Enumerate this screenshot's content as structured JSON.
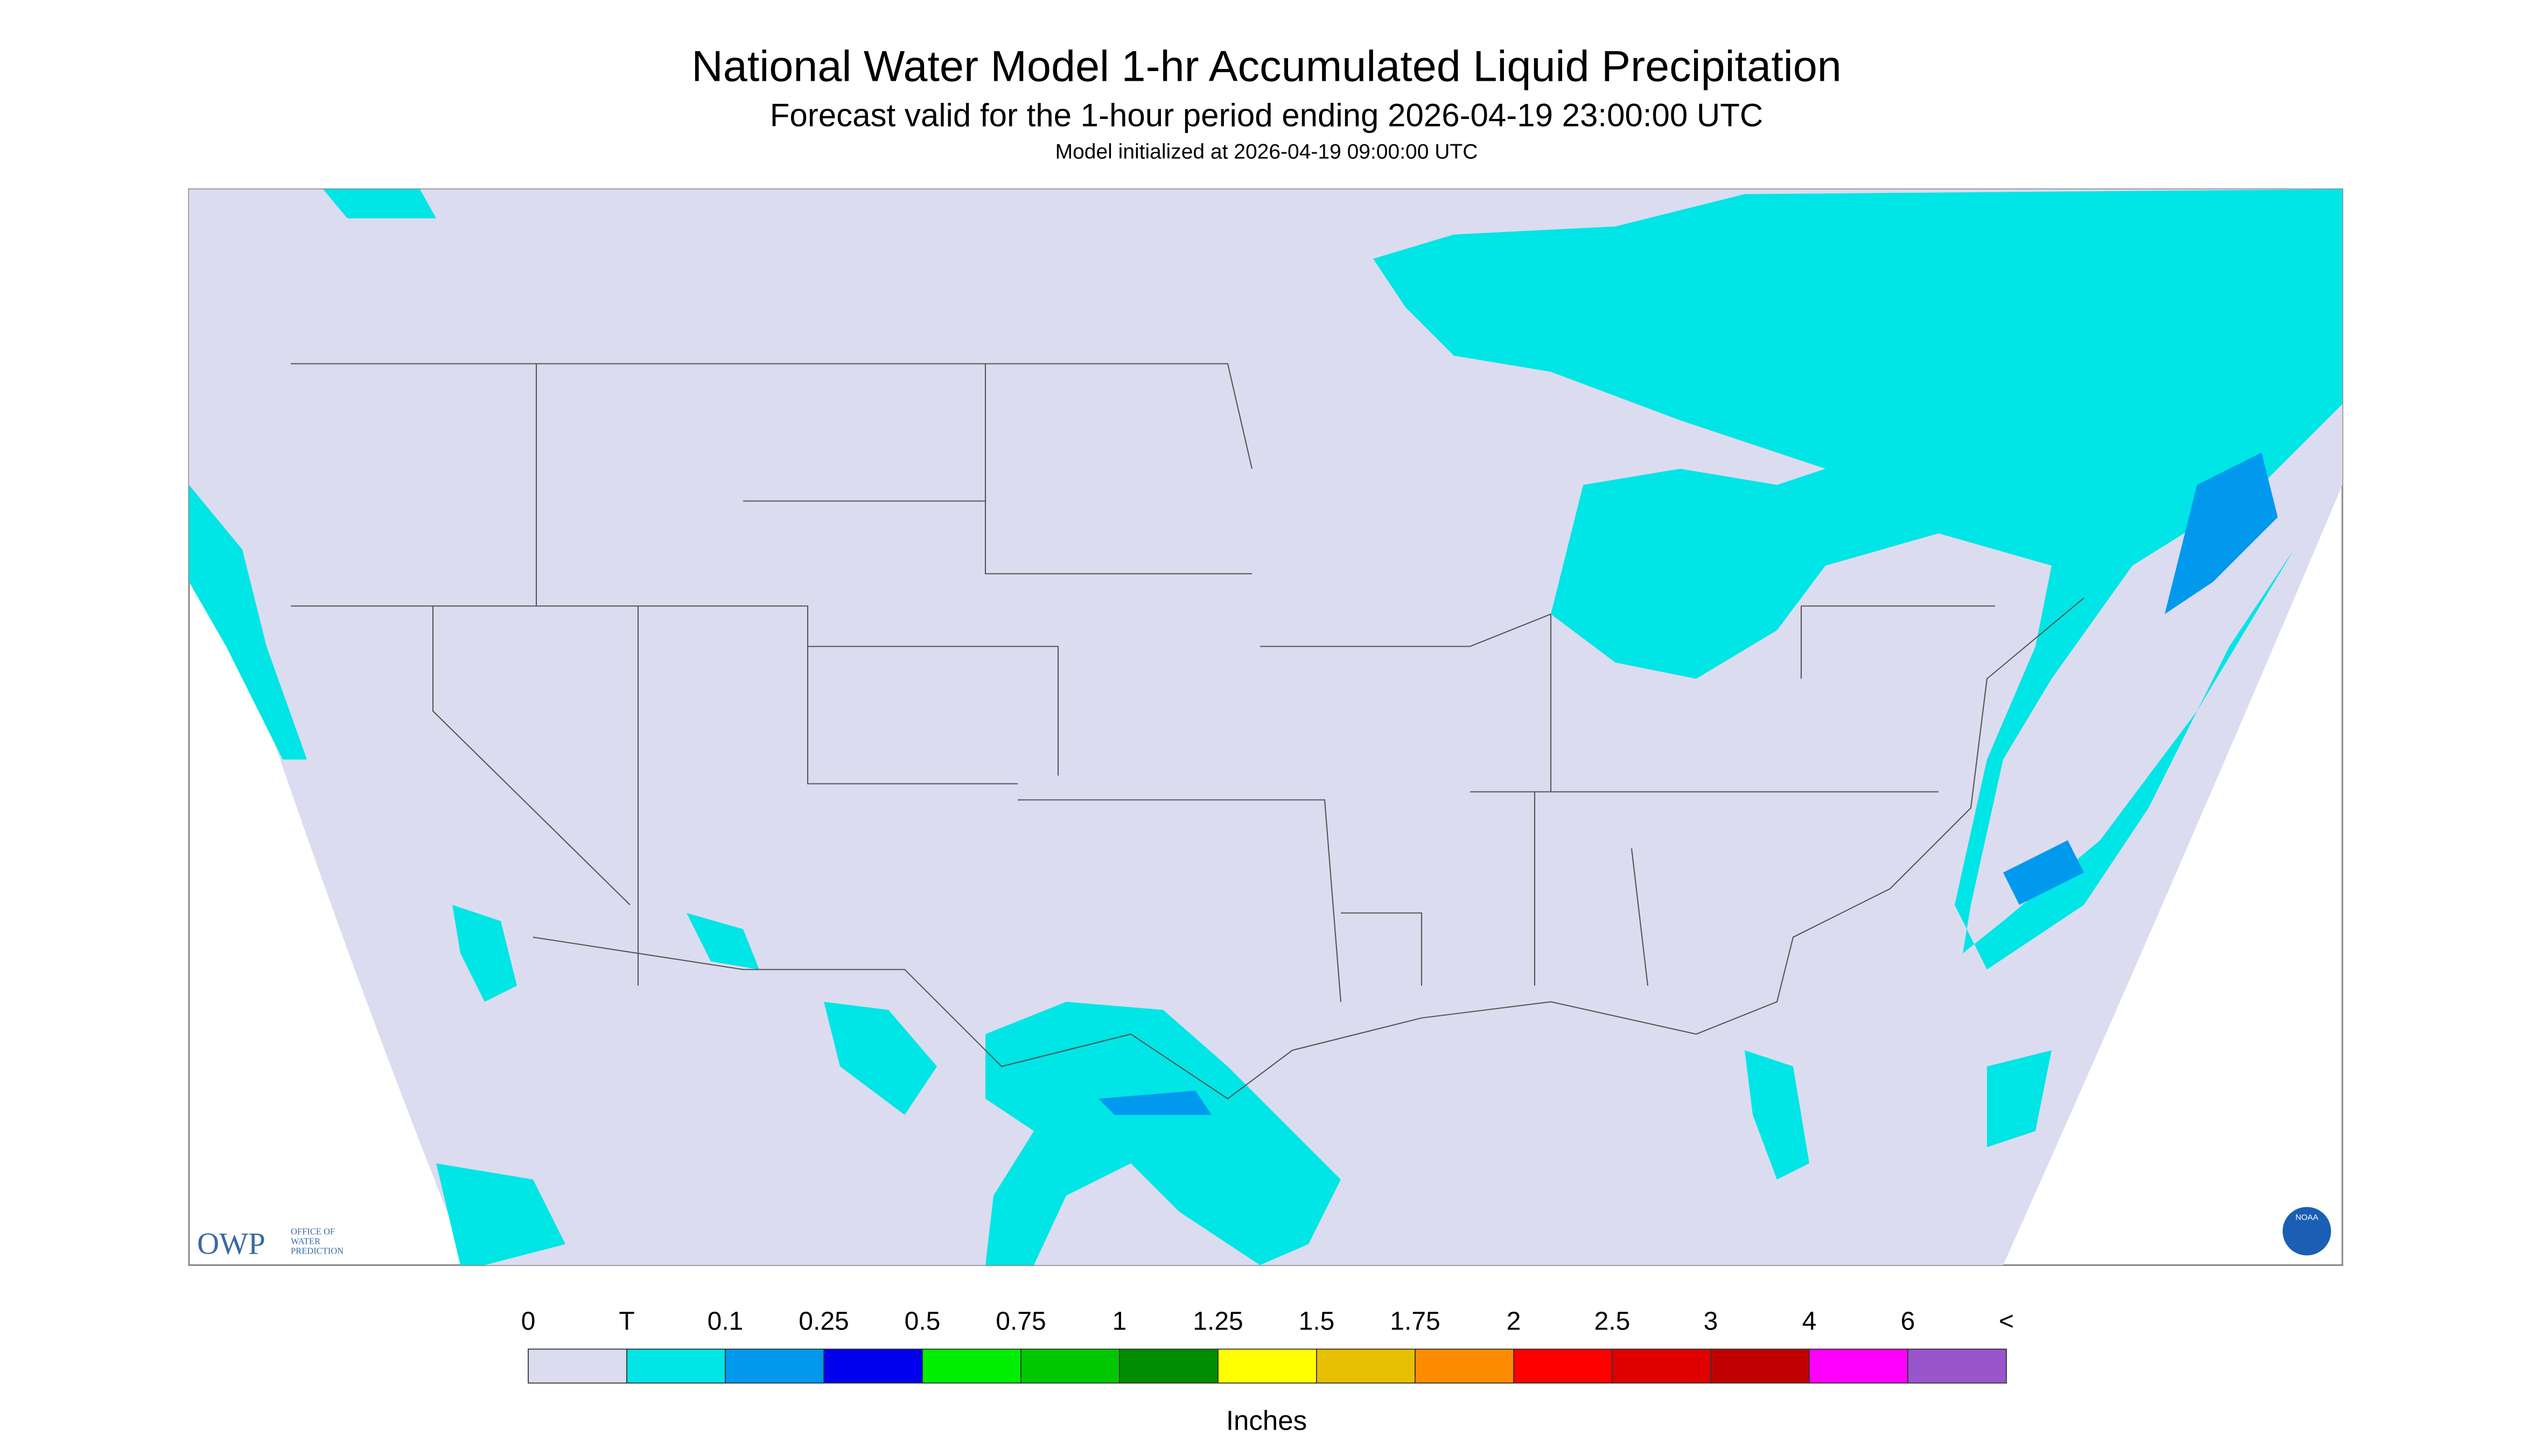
{
  "header": {
    "title": "National Water Model 1-hr Accumulated Liquid Precipitation",
    "subtitle": "Forecast valid for the 1-hour period ending 2026-04-19 23:00:00 UTC",
    "note": "Model initialized at 2026-04-19 09:00:00 UTC"
  },
  "logos": {
    "owp": "OWP",
    "owp_text": [
      "OFFICE OF",
      "WATER",
      "PREDICTION"
    ],
    "noaa": "NOAA"
  },
  "legend": {
    "labels": [
      "0",
      "T",
      "0.1",
      "0.25",
      "0.5",
      "0.75",
      "1",
      "1.25",
      "1.5",
      "1.75",
      "2",
      "2.5",
      "3",
      "4",
      "6",
      "<"
    ],
    "colors": [
      "#dcdcf0",
      "#00e5e5",
      "#0099ee",
      "#0000ee",
      "#00ee00",
      "#00c800",
      "#008c00",
      "#ffff00",
      "#e6c000",
      "#ff8c00",
      "#ff0000",
      "#e00000",
      "#c00000",
      "#ff00ff",
      "#9955cc"
    ],
    "units": "Inches"
  }
}
